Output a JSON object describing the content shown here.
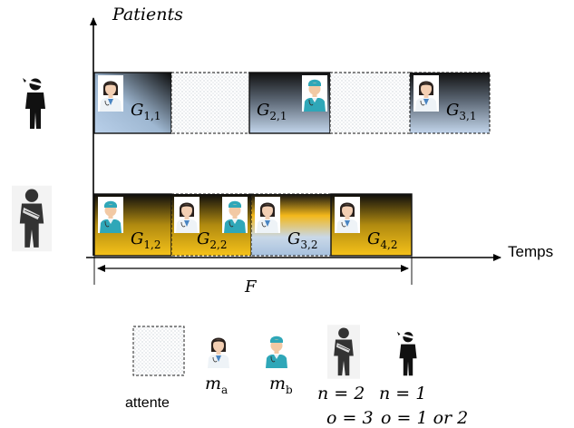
{
  "axes": {
    "y_label": "Patients",
    "x_label": "Temps",
    "span_label": "F"
  },
  "patients": [
    {
      "name": "patient-bandaged-head",
      "tasks": [
        {
          "label": "G",
          "sub": "1,1",
          "kind": "task",
          "fill": "blue",
          "staff": [
            "doctor-woman"
          ]
        },
        {
          "kind": "wait"
        },
        {
          "label": "G",
          "sub": "2,1",
          "kind": "task",
          "fill": "blue",
          "staff": [
            "doctor-man"
          ]
        },
        {
          "kind": "wait"
        },
        {
          "label": "G",
          "sub": "3,1",
          "kind": "task",
          "fill": "blue",
          "staff": [
            "doctor-woman"
          ]
        }
      ]
    },
    {
      "name": "patient-arm-sling",
      "tasks": [
        {
          "label": "G",
          "sub": "1,2",
          "kind": "task",
          "fill": "gold",
          "staff": [
            "doctor-man"
          ]
        },
        {
          "label": "G",
          "sub": "2,2",
          "kind": "task",
          "fill": "gold",
          "staff": [
            "doctor-woman",
            "doctor-man"
          ]
        },
        {
          "label": "G",
          "sub": "3,2",
          "kind": "task",
          "fill": "mixed",
          "staff": [
            "doctor-woman"
          ]
        },
        {
          "label": "G",
          "sub": "4,2",
          "kind": "task",
          "fill": "gold",
          "staff": [
            "doctor-woman"
          ]
        }
      ]
    }
  ],
  "legend": {
    "wait_label": "attente",
    "doctor_a_label": "m",
    "doctor_a_sub": "a",
    "doctor_b_label": "m",
    "doctor_b_sub": "b",
    "patient2_n": "n = 2",
    "patient2_o": "o = 3",
    "patient1_n": "n = 1",
    "patient1_o_prefix": "o = 1 ",
    "patient1_o_or": "or",
    "patient1_o_suffix": " 2"
  },
  "colors": {
    "blue_light": "#b7cde6",
    "blue_dark": "#0c0c0c",
    "gold": "#f5b800",
    "axis": "#000000"
  }
}
